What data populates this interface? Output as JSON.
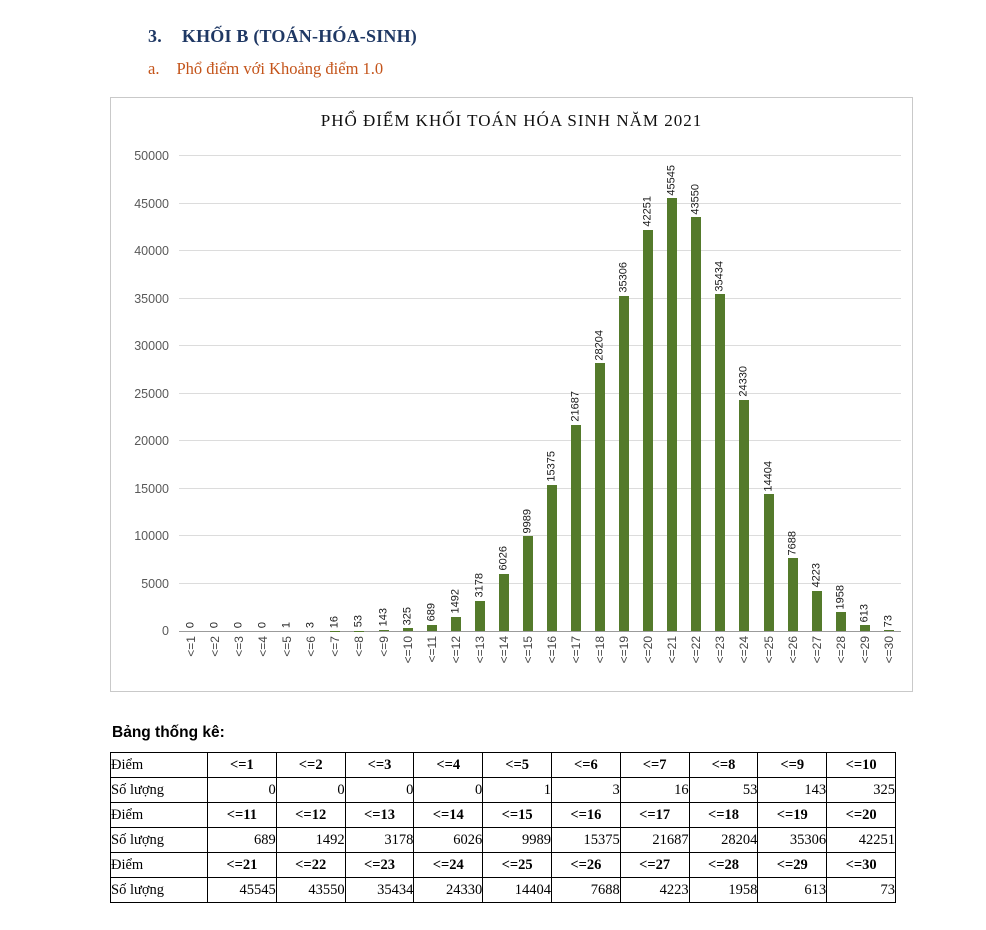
{
  "page": {
    "heading_number": "3.",
    "heading_text": "KHỐI B (TOÁN-HÓA-SINH)",
    "subheading_letter": "a.",
    "subheading_text": "Phổ điểm với Khoảng điểm 1.0"
  },
  "colors": {
    "heading": "#1f3864",
    "subheading": "#c4541a",
    "bar": "#547a2b",
    "gridline": "#dcdcdc",
    "axis": "#9b9b9b",
    "y_tick_label": "#595959"
  },
  "chart_data": {
    "type": "bar",
    "title": "PHỔ ĐIỂM KHỐI TOÁN HÓA SINH NĂM 2021",
    "categories": [
      "<=1",
      "<=2",
      "<=3",
      "<=4",
      "<=5",
      "<=6",
      "<=7",
      "<=8",
      "<=9",
      "<=10",
      "<=11",
      "<=12",
      "<=13",
      "<=14",
      "<=15",
      "<=16",
      "<=17",
      "<=18",
      "<=19",
      "<=20",
      "<=21",
      "<=22",
      "<=23",
      "<=24",
      "<=25",
      "<=26",
      "<=27",
      "<=28",
      "<=29",
      "<=30"
    ],
    "values": [
      0,
      0,
      0,
      0,
      1,
      3,
      16,
      53,
      143,
      325,
      689,
      1492,
      3178,
      6026,
      9989,
      15375,
      21687,
      28204,
      35306,
      42251,
      45545,
      43550,
      35434,
      24330,
      14404,
      7688,
      4223,
      1958,
      613,
      73
    ],
    "xlabel": "",
    "ylabel": "",
    "ylim": [
      0,
      50000
    ],
    "ytick_step": 5000,
    "grid": true,
    "legend": "none",
    "value_labels_rotation_deg": 90,
    "x_tick_rotation_deg": 90
  },
  "table": {
    "caption": "Bảng thống kê:",
    "diem_label": "Điểm",
    "so_luong_label": "Số lượng",
    "row_groups": [
      {
        "diem": [
          "<=1",
          "<=2",
          "<=3",
          "<=4",
          "<=5",
          "<=6",
          "<=7",
          "<=8",
          "<=9",
          "<=10"
        ],
        "so_luong": [
          0,
          0,
          0,
          0,
          1,
          3,
          16,
          53,
          143,
          325
        ]
      },
      {
        "diem": [
          "<=11",
          "<=12",
          "<=13",
          "<=14",
          "<=15",
          "<=16",
          "<=17",
          "<=18",
          "<=19",
          "<=20"
        ],
        "so_luong": [
          689,
          1492,
          3178,
          6026,
          9989,
          15375,
          21687,
          28204,
          35306,
          42251
        ]
      },
      {
        "diem": [
          "<=21",
          "<=22",
          "<=23",
          "<=24",
          "<=25",
          "<=26",
          "<=27",
          "<=28",
          "<=29",
          "<=30"
        ],
        "so_luong": [
          45545,
          43550,
          35434,
          24330,
          14404,
          7688,
          4223,
          1958,
          613,
          73
        ]
      }
    ]
  }
}
